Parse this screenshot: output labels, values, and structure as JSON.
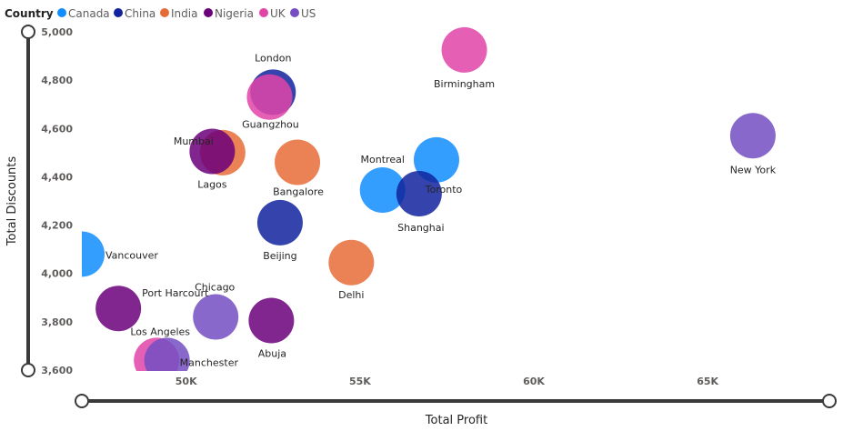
{
  "chart_data": {
    "type": "scatter",
    "xlabel": "Total Profit",
    "ylabel": "Total Discounts",
    "xlim": [
      47000,
      68500
    ],
    "ylim": [
      3600,
      5000
    ],
    "xticks": [
      50000,
      55000,
      60000,
      65000
    ],
    "xtick_labels": [
      "50K",
      "55K",
      "60K",
      "65K"
    ],
    "yticks": [
      3600,
      3800,
      4000,
      4200,
      4400,
      4600,
      4800,
      5000
    ],
    "ytick_labels": [
      "3,600",
      "3,800",
      "4,000",
      "4,200",
      "4,400",
      "4,600",
      "4,800",
      "5,000"
    ],
    "legend": {
      "title": "Country",
      "placement": "top-left",
      "items": [
        {
          "name": "Canada",
          "color": "#118DFF"
        },
        {
          "name": "China",
          "color": "#12239E"
        },
        {
          "name": "India",
          "color": "#E66C37"
        },
        {
          "name": "Nigeria",
          "color": "#6B007B"
        },
        {
          "name": "UK",
          "color": "#E044A7"
        },
        {
          "name": "US",
          "color": "#744EC2"
        }
      ]
    },
    "points": [
      {
        "city": "Vancouver",
        "country": "Canada",
        "x": 47000,
        "y": 4080
      },
      {
        "city": "Montreal",
        "country": "Canada",
        "x": 55650,
        "y": 4345
      },
      {
        "city": "Toronto",
        "country": "Canada",
        "x": 57200,
        "y": 4470
      },
      {
        "city": "London",
        "country": "China",
        "x": 52500,
        "y": 4750
      },
      {
        "city": "Beijing",
        "country": "China",
        "x": 52700,
        "y": 4210
      },
      {
        "city": "Shanghai",
        "country": "China",
        "x": 56700,
        "y": 4330
      },
      {
        "city": "Bangalore",
        "country": "India",
        "x": 53200,
        "y": 4460
      },
      {
        "city": "Delhi",
        "country": "India",
        "x": 54750,
        "y": 4045
      },
      {
        "city": "Mumbai",
        "country": "India",
        "x": 51050,
        "y": 4500
      },
      {
        "city": "Lagos",
        "country": "Nigeria",
        "x": 50750,
        "y": 4505
      },
      {
        "city": "Port Harcourt",
        "country": "Nigeria",
        "x": 48050,
        "y": 3855
      },
      {
        "city": "Abuja",
        "country": "Nigeria",
        "x": 52450,
        "y": 3805
      },
      {
        "city": "Guangzhou",
        "country": "UK",
        "x": 52400,
        "y": 4730
      },
      {
        "city": "Birmingham",
        "country": "UK",
        "x": 58000,
        "y": 4925
      },
      {
        "city": "Los Angeles",
        "country": "UK",
        "x": 49150,
        "y": 3640
      },
      {
        "city": "New York",
        "country": "US",
        "x": 66300,
        "y": 4570
      },
      {
        "city": "Chicago",
        "country": "US",
        "x": 50850,
        "y": 3820
      },
      {
        "city": "Manchester",
        "country": "US",
        "x": 49450,
        "y": 3640
      }
    ]
  }
}
